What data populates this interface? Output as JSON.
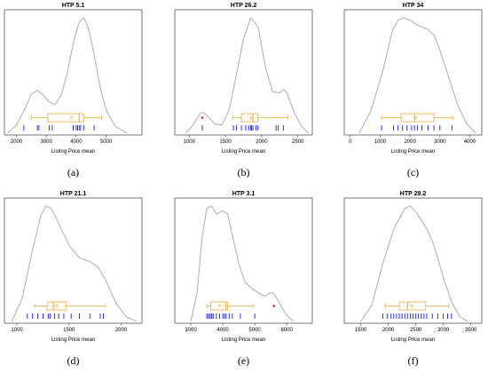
{
  "chart_data": [
    {
      "type": "density",
      "title": "HTP 5.1",
      "xlabel": "Listing Price mean",
      "caption": "(a)",
      "xlim": [
        1600,
        6200
      ],
      "xticks": [
        2000,
        3000,
        4000,
        5000
      ],
      "density": [
        [
          1700,
          0.0
        ],
        [
          2000,
          0.07
        ],
        [
          2300,
          0.22
        ],
        [
          2500,
          0.34
        ],
        [
          2700,
          0.37
        ],
        [
          2900,
          0.33
        ],
        [
          3100,
          0.27
        ],
        [
          3300,
          0.25
        ],
        [
          3500,
          0.33
        ],
        [
          3700,
          0.52
        ],
        [
          3900,
          0.78
        ],
        [
          4100,
          0.96
        ],
        [
          4250,
          1.0
        ],
        [
          4400,
          0.92
        ],
        [
          4600,
          0.68
        ],
        [
          4800,
          0.4
        ],
        [
          5000,
          0.2
        ],
        [
          5300,
          0.06
        ],
        [
          5700,
          0.0
        ]
      ],
      "boxplot": {
        "min": 2500,
        "q1": 3050,
        "median": 4100,
        "q3": 4250,
        "max": 4850,
        "mean": 3850,
        "outliers": []
      },
      "rug": [
        2250,
        2700,
        2750,
        3100,
        3200,
        3900,
        4000,
        4050,
        4100,
        4150,
        4250,
        4600
      ]
    },
    {
      "type": "density",
      "title": "HTP 26.2",
      "xlabel": "Listing Price mean",
      "caption": "(b)",
      "xlim": [
        800,
        2700
      ],
      "xticks": [
        1000,
        1500,
        2000,
        2500
      ],
      "density": [
        [
          950,
          0.0
        ],
        [
          1050,
          0.07
        ],
        [
          1150,
          0.17
        ],
        [
          1200,
          0.18
        ],
        [
          1250,
          0.15
        ],
        [
          1350,
          0.08
        ],
        [
          1450,
          0.07
        ],
        [
          1550,
          0.2
        ],
        [
          1650,
          0.5
        ],
        [
          1750,
          0.82
        ],
        [
          1850,
          1.0
        ],
        [
          1950,
          0.92
        ],
        [
          2050,
          0.58
        ],
        [
          2150,
          0.36
        ],
        [
          2250,
          0.35
        ],
        [
          2300,
          0.38
        ],
        [
          2350,
          0.35
        ],
        [
          2450,
          0.18
        ],
        [
          2550,
          0.06
        ],
        [
          2650,
          0.0
        ]
      ],
      "boxplot": {
        "min": 1600,
        "q1": 1720,
        "median": 1880,
        "q3": 1950,
        "max": 2360,
        "mean": 1860,
        "outliers": [
          1180
        ]
      },
      "rug": [
        1180,
        1610,
        1650,
        1720,
        1780,
        1820,
        1850,
        1860,
        1880,
        1920,
        1950,
        2200,
        2230,
        2300
      ]
    },
    {
      "type": "density",
      "title": "HTP 34",
      "xlabel": "Listing Price mean",
      "caption": "(c)",
      "xlim": [
        -200,
        4400
      ],
      "xticks": [
        0,
        1000,
        2000,
        3000,
        4000
      ],
      "density": [
        [
          300,
          0.0
        ],
        [
          700,
          0.2
        ],
        [
          1100,
          0.55
        ],
        [
          1400,
          0.88
        ],
        [
          1600,
          0.98
        ],
        [
          1800,
          1.0
        ],
        [
          2000,
          0.98
        ],
        [
          2300,
          0.93
        ],
        [
          2600,
          0.9
        ],
        [
          2800,
          0.85
        ],
        [
          3000,
          0.72
        ],
        [
          3300,
          0.48
        ],
        [
          3600,
          0.24
        ],
        [
          3900,
          0.08
        ],
        [
          4200,
          0.0
        ]
      ],
      "boxplot": {
        "min": 1050,
        "q1": 1700,
        "median": 2150,
        "q3": 2800,
        "max": 3450,
        "mean": 2200,
        "outliers": []
      },
      "rug": [
        1050,
        1450,
        1600,
        1750,
        1900,
        2050,
        2150,
        2250,
        2400,
        2600,
        2800,
        3000,
        3400
      ]
    },
    {
      "type": "density",
      "title": "HTP 21.1",
      "xlabel": "Listing Price mean",
      "caption": "(d)",
      "xlim": [
        880,
        2200
      ],
      "xticks": [
        1000,
        1500,
        2000
      ],
      "density": [
        [
          950,
          0.0
        ],
        [
          1050,
          0.2
        ],
        [
          1150,
          0.62
        ],
        [
          1230,
          0.92
        ],
        [
          1280,
          1.0
        ],
        [
          1330,
          0.98
        ],
        [
          1400,
          0.85
        ],
        [
          1500,
          0.66
        ],
        [
          1600,
          0.55
        ],
        [
          1700,
          0.52
        ],
        [
          1780,
          0.47
        ],
        [
          1850,
          0.36
        ],
        [
          1950,
          0.16
        ],
        [
          2050,
          0.04
        ],
        [
          2150,
          0.0
        ]
      ],
      "boxplot": {
        "min": 1170,
        "q1": 1290,
        "median": 1350,
        "q3": 1470,
        "max": 1850,
        "mean": 1380,
        "outliers": []
      },
      "rug": [
        1100,
        1150,
        1200,
        1250,
        1300,
        1320,
        1360,
        1400,
        1450,
        1520,
        1600,
        1700,
        1800,
        1830
      ]
    },
    {
      "type": "density",
      "title": "HTP 3.1",
      "xlabel": "Listing Price mean",
      "caption": "(e)",
      "xlim": [
        2500,
        6800
      ],
      "xticks": [
        3000,
        4000,
        5000,
        6000
      ],
      "density": [
        [
          3000,
          0.0
        ],
        [
          3200,
          0.25
        ],
        [
          3350,
          0.72
        ],
        [
          3500,
          0.98
        ],
        [
          3650,
          1.0
        ],
        [
          3800,
          0.93
        ],
        [
          4000,
          0.96
        ],
        [
          4150,
          0.93
        ],
        [
          4300,
          0.75
        ],
        [
          4500,
          0.5
        ],
        [
          4700,
          0.34
        ],
        [
          4900,
          0.29
        ],
        [
          5100,
          0.25
        ],
        [
          5300,
          0.22
        ],
        [
          5500,
          0.25
        ],
        [
          5600,
          0.24
        ],
        [
          5750,
          0.17
        ],
        [
          5950,
          0.07
        ],
        [
          6200,
          0.0
        ]
      ],
      "boxplot": {
        "min": 3500,
        "q1": 3620,
        "median": 4100,
        "q3": 4150,
        "max": 4950,
        "mean": 3900,
        "outliers": [
          5600
        ]
      },
      "rug": [
        3500,
        3550,
        3600,
        3650,
        3700,
        3800,
        3900,
        4000,
        4050,
        4100,
        4200,
        4300,
        4550,
        5000
      ]
    },
    {
      "type": "density",
      "title": "HTP 29.2",
      "xlabel": "Listing Price mean",
      "caption": "(f)",
      "xlim": [
        1200,
        3700
      ],
      "xticks": [
        1500,
        2000,
        2500,
        3000,
        3500
      ],
      "density": [
        [
          1500,
          0.0
        ],
        [
          1700,
          0.14
        ],
        [
          1900,
          0.5
        ],
        [
          2100,
          0.8
        ],
        [
          2300,
          0.98
        ],
        [
          2400,
          1.0
        ],
        [
          2500,
          0.95
        ],
        [
          2600,
          0.88
        ],
        [
          2700,
          0.8
        ],
        [
          2800,
          0.7
        ],
        [
          2900,
          0.55
        ],
        [
          3000,
          0.38
        ],
        [
          3150,
          0.17
        ],
        [
          3300,
          0.04
        ],
        [
          3450,
          0.0
        ]
      ],
      "boxplot": {
        "min": 1950,
        "q1": 2200,
        "median": 2350,
        "q3": 2680,
        "max": 3100,
        "mean": 2420,
        "outliers": []
      },
      "rug": [
        1900,
        1980,
        2050,
        2100,
        2150,
        2200,
        2250,
        2300,
        2350,
        2400,
        2450,
        2500,
        2550,
        2600,
        2650,
        2700,
        2800,
        2900,
        3000,
        3080,
        3150
      ]
    }
  ],
  "colors": {
    "frame": "#555555",
    "density": "#b3b3b3",
    "box": "#f0a73a",
    "rug": "#1a1aff",
    "outlier": "#e01818",
    "mean": "#f0a73a"
  }
}
